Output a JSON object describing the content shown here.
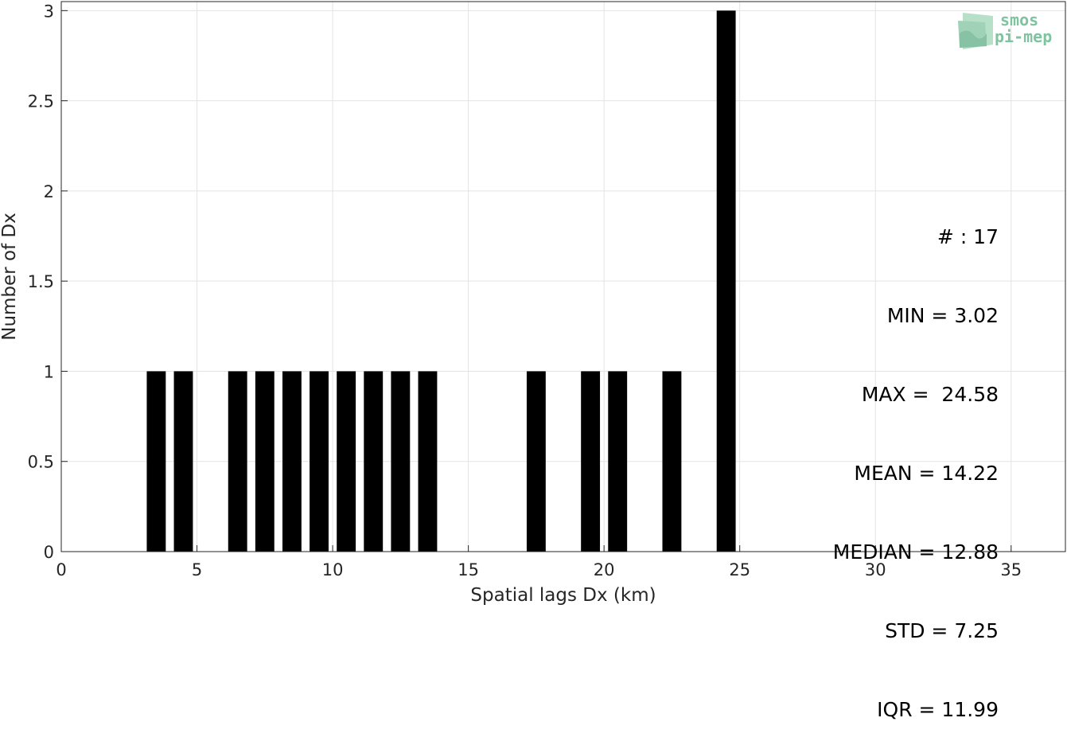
{
  "chart_data": {
    "type": "bar",
    "xlabel": "Spatial lags Dx (km)",
    "ylabel": "Number of Dx",
    "xlim": [
      0,
      37
    ],
    "ylim": [
      0,
      3.05
    ],
    "xticks": [
      0,
      5,
      10,
      15,
      20,
      25,
      30,
      35
    ],
    "yticks": [
      0,
      0.5,
      1,
      1.5,
      2,
      2.5,
      3
    ],
    "ytick_labels": [
      "0",
      "0.5",
      "1",
      "1.5",
      "2",
      "2.5",
      "3"
    ],
    "grid": true,
    "bar_color": "#000000",
    "bin_width": 1,
    "bar_width_fraction": 0.7,
    "bins": [
      {
        "x": 3.5,
        "count": 1
      },
      {
        "x": 4.5,
        "count": 1
      },
      {
        "x": 6.5,
        "count": 1
      },
      {
        "x": 7.5,
        "count": 1
      },
      {
        "x": 8.5,
        "count": 1
      },
      {
        "x": 9.5,
        "count": 1
      },
      {
        "x": 10.5,
        "count": 1
      },
      {
        "x": 11.5,
        "count": 1
      },
      {
        "x": 12.5,
        "count": 1
      },
      {
        "x": 13.5,
        "count": 1
      },
      {
        "x": 17.5,
        "count": 1
      },
      {
        "x": 19.5,
        "count": 1
      },
      {
        "x": 20.5,
        "count": 1
      },
      {
        "x": 22.5,
        "count": 1
      },
      {
        "x": 24.5,
        "count": 3
      }
    ],
    "annotation_lines": [
      "# : 17",
      "MIN = 3.02",
      "MAX =  24.58",
      "MEAN = 14.22",
      "MEDIAN = 12.88",
      "STD = 7.25",
      "IQR = 11.99"
    ]
  },
  "logo": {
    "line1": "smos",
    "line2": "pi-mep",
    "color": "#7fc3a0"
  }
}
